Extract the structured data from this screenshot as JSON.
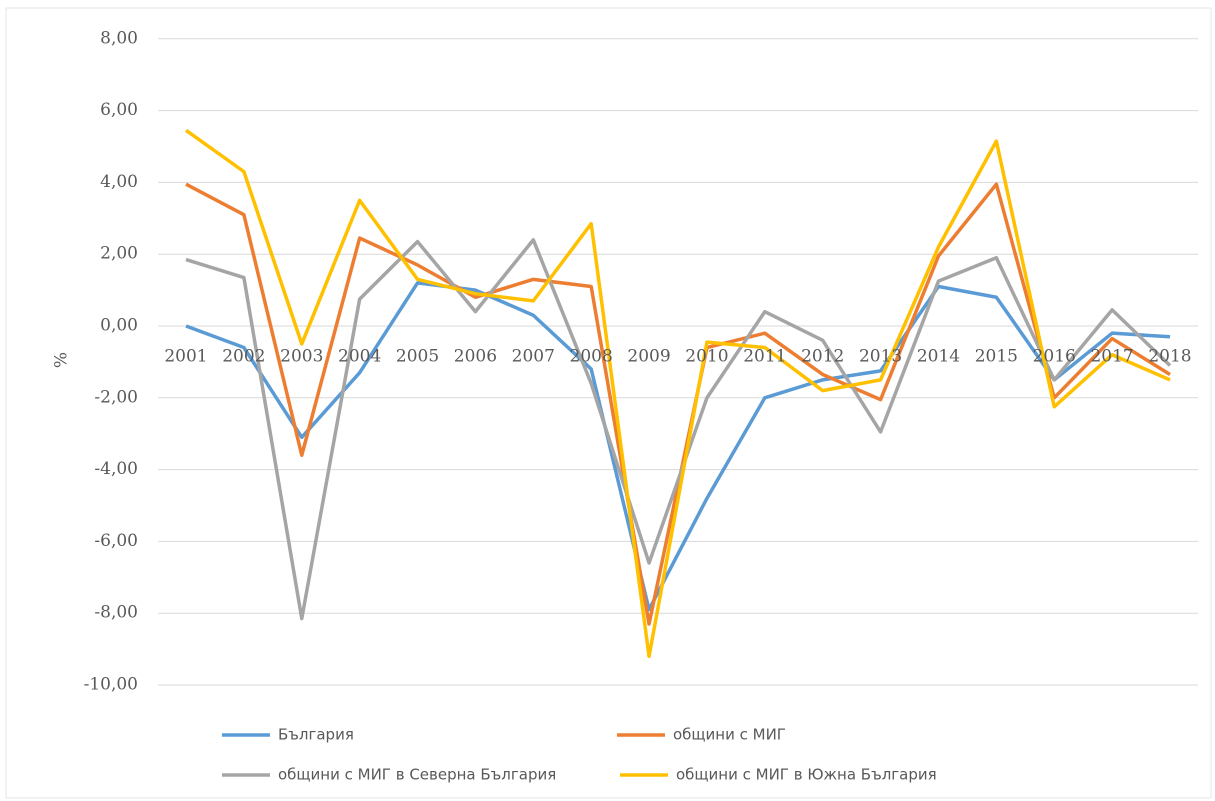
{
  "chart_data": {
    "type": "line",
    "y_label": "%",
    "categories": [
      "2001",
      "2002",
      "2003",
      "2004",
      "2005",
      "2006",
      "2007",
      "2008",
      "2009",
      "2010",
      "2011",
      "2012",
      "2013",
      "2014",
      "2015",
      "2016",
      "2017",
      "2018"
    ],
    "series": [
      {
        "name": "България",
        "color": "#5b9bd5",
        "values": [
          0.0,
          -0.6,
          -3.1,
          -1.3,
          1.2,
          1.0,
          0.3,
          -1.2,
          -7.9,
          -4.8,
          -2.0,
          -1.5,
          -1.25,
          1.1,
          0.8,
          -1.5,
          -0.2,
          -0.3
        ]
      },
      {
        "name": "общини с МИГ",
        "color": "#ed7d31",
        "values": [
          3.95,
          3.1,
          -3.6,
          2.45,
          1.7,
          0.8,
          1.3,
          1.1,
          -8.3,
          -0.6,
          -0.2,
          -1.35,
          -2.05,
          1.95,
          3.95,
          -2.0,
          -0.35,
          -1.35
        ]
      },
      {
        "name": "общини с МИГ в Северна България",
        "color": "#a5a5a5",
        "values": [
          1.85,
          1.35,
          -8.15,
          0.75,
          2.35,
          0.4,
          2.4,
          -1.6,
          -6.6,
          -2.0,
          0.4,
          -0.4,
          -2.95,
          1.25,
          1.9,
          -1.5,
          0.45,
          -1.1
        ]
      },
      {
        "name": "общини с МИГ в Южна България",
        "color": "#ffc000",
        "values": [
          5.45,
          4.3,
          -0.5,
          3.5,
          1.3,
          0.9,
          0.7,
          2.85,
          -9.2,
          -0.45,
          -0.6,
          -1.8,
          -1.5,
          2.2,
          5.15,
          -2.25,
          -0.8,
          -1.5
        ]
      }
    ],
    "ylim": [
      -10,
      8
    ],
    "yticks": [
      {
        "value": -10,
        "label": "-10,00"
      },
      {
        "value": -8,
        "label": "-8,00"
      },
      {
        "value": -6,
        "label": "-6,00"
      },
      {
        "value": -4,
        "label": "-4,00"
      },
      {
        "value": -2,
        "label": "-2,00"
      },
      {
        "value": 0,
        "label": "0,00"
      },
      {
        "value": 2,
        "label": "2,00"
      },
      {
        "value": 4,
        "label": "4,00"
      },
      {
        "value": 6,
        "label": "6,00"
      },
      {
        "value": 8,
        "label": "8,00"
      }
    ],
    "grid": true
  }
}
